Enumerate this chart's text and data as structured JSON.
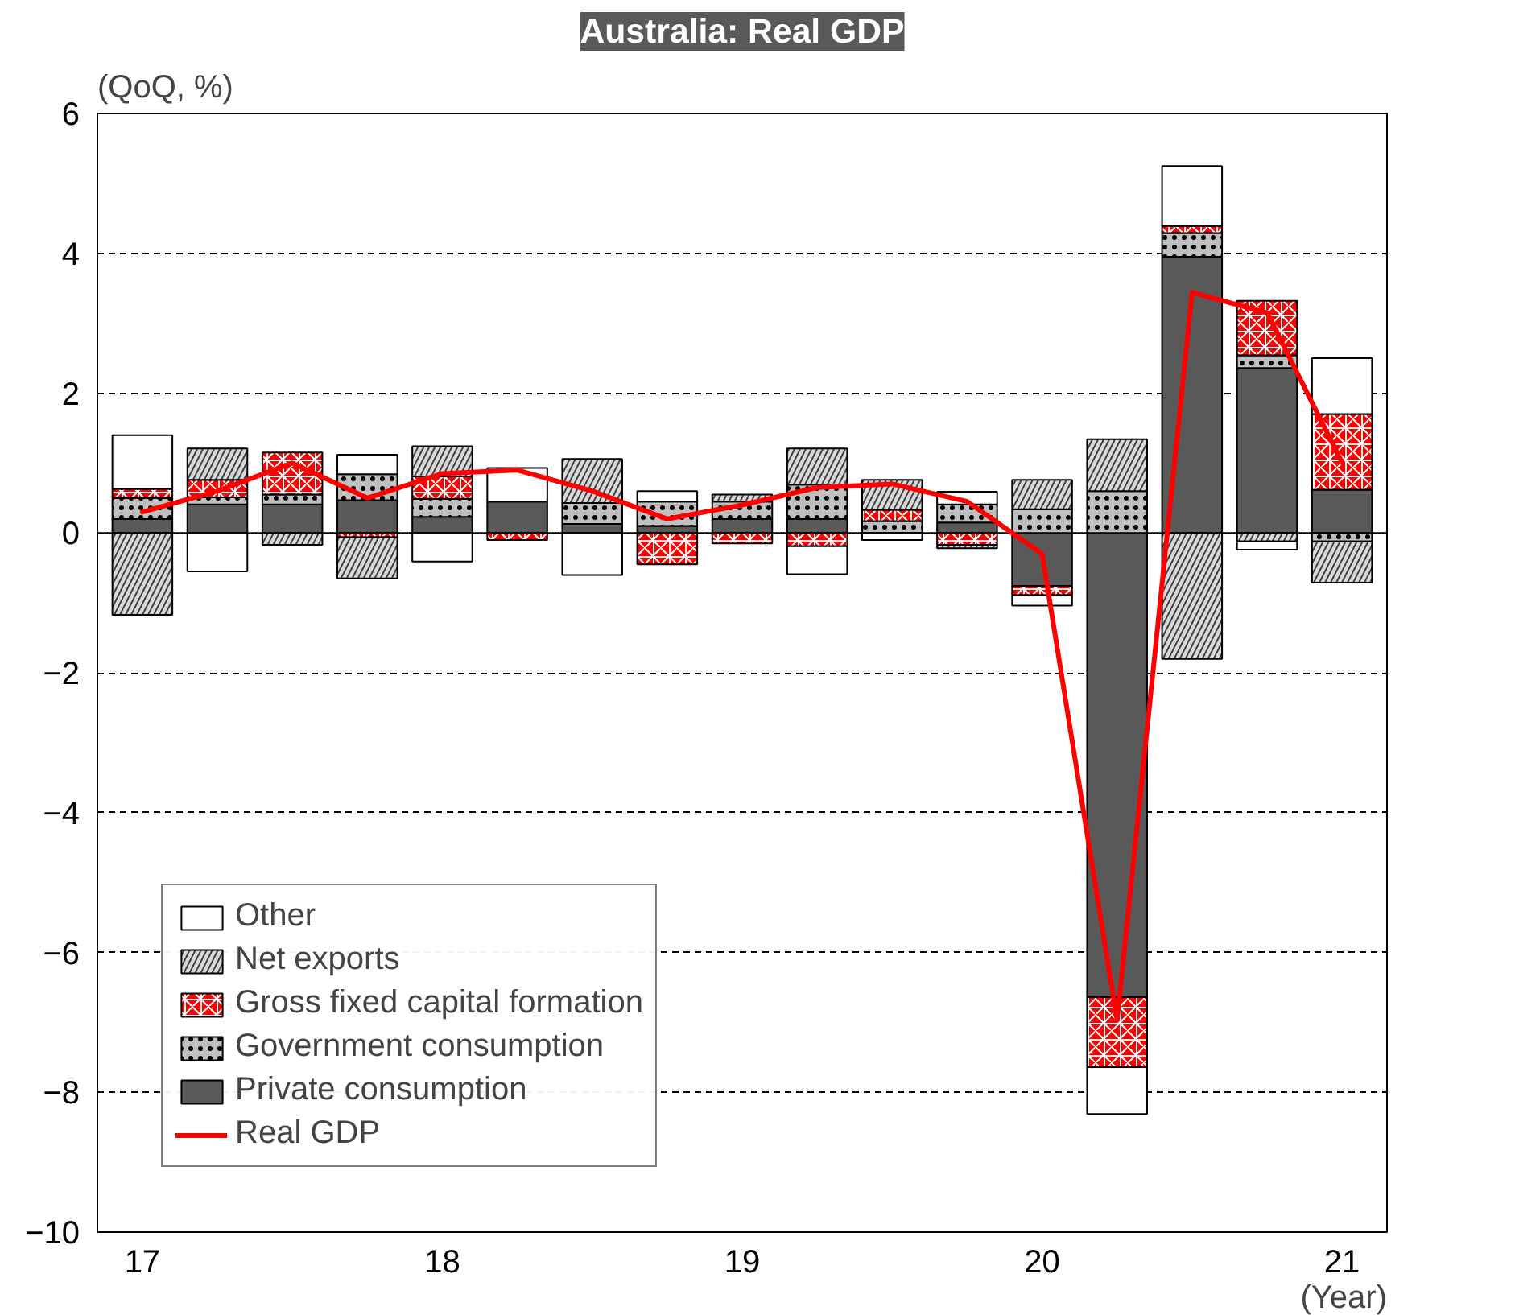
{
  "chart_data": {
    "type": "bar",
    "stacked": true,
    "title": "Australia: Real GDP",
    "ylabel": "(QoQ, %)",
    "xlabel": "(Year)",
    "categories": [
      "17",
      null,
      null,
      null,
      "18",
      null,
      null,
      null,
      "19",
      null,
      null,
      null,
      "20",
      null,
      null,
      null,
      "21"
    ],
    "ylim": [
      -10,
      6
    ],
    "yticks": [
      -10,
      -8,
      -6,
      -4,
      -2,
      0,
      2,
      4,
      6
    ],
    "grid": "y",
    "legend": "bottom left",
    "series": [
      {
        "name": "Private consumption",
        "color": "#595959",
        "values": [
          0.2,
          0.41,
          0.41,
          0.47,
          0.23,
          0.45,
          0.13,
          0.1,
          0.2,
          0.2,
          null,
          0.15,
          -0.76,
          -6.64,
          3.95,
          2.36,
          0.62
        ]
      },
      {
        "name": "Government consumption",
        "color": "#bfbfbf",
        "values": [
          0.3,
          0.1,
          0.14,
          0.37,
          0.26,
          null,
          0.3,
          0.35,
          0.25,
          0.49,
          0.17,
          0.26,
          0.34,
          0.6,
          0.34,
          0.18,
          -0.12
        ]
      },
      {
        "name": "Gross fixed capital formation",
        "color": "#ff0000",
        "values": [
          0.13,
          0.25,
          0.6,
          -0.06,
          0.32,
          -0.1,
          null,
          -0.45,
          -0.15,
          -0.19,
          0.16,
          -0.17,
          -0.13,
          -1.0,
          0.1,
          0.78,
          1.08
        ]
      },
      {
        "name": "Net exports",
        "color": "#d9d9d9",
        "values": [
          -1.17,
          0.45,
          -0.17,
          -0.59,
          0.43,
          null,
          0.63,
          null,
          0.1,
          0.52,
          0.43,
          -0.05,
          0.42,
          0.74,
          -1.8,
          -0.12,
          -0.59
        ]
      },
      {
        "name": "Other",
        "color": "#ffffff",
        "values": [
          0.77,
          -0.55,
          null,
          0.28,
          -0.41,
          0.48,
          -0.6,
          0.15,
          null,
          -0.4,
          -0.1,
          0.18,
          -0.15,
          -0.67,
          0.86,
          -0.12,
          0.8
        ]
      },
      {
        "name": "Real GDP",
        "type": "line",
        "color": "#ff0000",
        "values": [
          0.3,
          0.6,
          1.0,
          0.5,
          0.85,
          0.9,
          0.6,
          0.2,
          0.4,
          0.65,
          0.7,
          0.45,
          -0.3,
          -6.97,
          3.44,
          3.15,
          1.01
        ]
      }
    ]
  }
}
